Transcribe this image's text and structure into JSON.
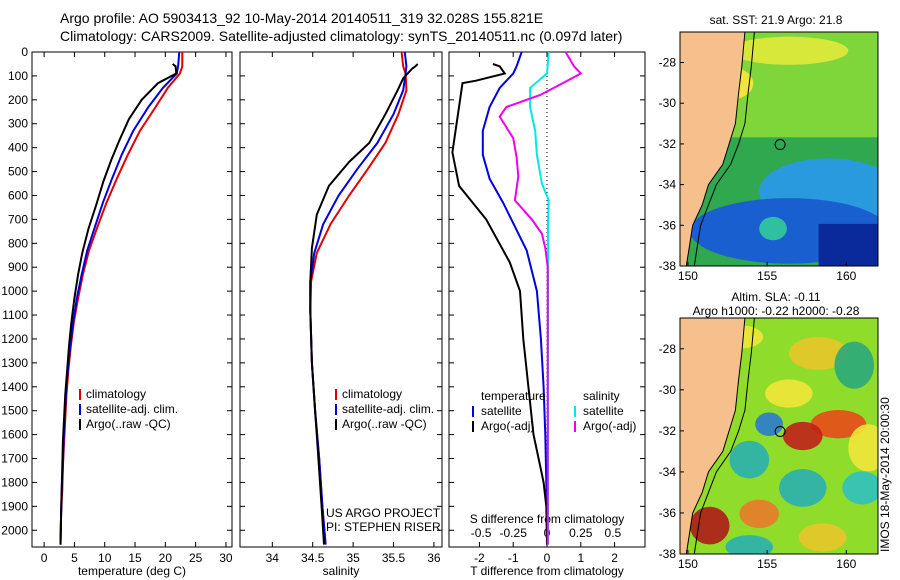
{
  "header": {
    "line1": "Argo profile: AO 5903413_92 10-May-2014 20140511_319 32.028S 155.821E",
    "line2": "Climatology: CARS2009. Satellite-adjusted climatology: synTS_20140511.nc (0.097d later)"
  },
  "colors": {
    "climatology": "#e00000",
    "satellite": "#0000e0",
    "argo": "#000000",
    "sal_satellite": "#00e8e8",
    "sal_argo": "#ee00ee"
  },
  "chart_data": [
    {
      "type": "line",
      "panel": "temperature",
      "xlabel": "temperature (deg C)",
      "xlim": [
        -2,
        31
      ],
      "xticks": [
        0,
        5,
        10,
        15,
        20,
        25,
        30
      ],
      "ylim": [
        0,
        2070
      ],
      "yticks": [
        0,
        100,
        200,
        300,
        400,
        500,
        600,
        700,
        800,
        900,
        1000,
        1100,
        1200,
        1300,
        1400,
        1500,
        1600,
        1700,
        1800,
        1900,
        2000
      ],
      "series": [
        {
          "name": "climatology",
          "color": "#e00000",
          "points": [
            [
              22.8,
              0
            ],
            [
              22.8,
              60
            ],
            [
              22.4,
              90
            ],
            [
              20.4,
              150
            ],
            [
              18.4,
              230
            ],
            [
              15.8,
              330
            ],
            [
              13.8,
              430
            ],
            [
              12.0,
              530
            ],
            [
              10.3,
              630
            ],
            [
              8.8,
              730
            ],
            [
              7.4,
              830
            ],
            [
              6.4,
              930
            ],
            [
              5.6,
              1030
            ],
            [
              4.9,
              1130
            ],
            [
              4.4,
              1230
            ],
            [
              4.0,
              1330
            ],
            [
              3.7,
              1430
            ],
            [
              3.5,
              1530
            ],
            [
              3.3,
              1630
            ],
            [
              3.1,
              1730
            ],
            [
              3.0,
              1830
            ],
            [
              2.8,
              1930
            ],
            [
              2.7,
              2060
            ]
          ]
        },
        {
          "name": "satellite-adj. clim.",
          "color": "#0000e0",
          "points": [
            [
              22.3,
              0
            ],
            [
              22.1,
              60
            ],
            [
              21.9,
              90
            ],
            [
              19.6,
              150
            ],
            [
              17.2,
              230
            ],
            [
              14.7,
              330
            ],
            [
              12.8,
              430
            ],
            [
              11.2,
              530
            ],
            [
              9.7,
              630
            ],
            [
              8.4,
              730
            ],
            [
              7.1,
              830
            ],
            [
              6.2,
              930
            ],
            [
              5.4,
              1030
            ],
            [
              4.8,
              1130
            ],
            [
              4.3,
              1230
            ],
            [
              3.9,
              1330
            ],
            [
              3.6,
              1430
            ],
            [
              3.4,
              1530
            ],
            [
              3.2,
              1630
            ],
            [
              3.1,
              1730
            ],
            [
              2.9,
              1830
            ],
            [
              2.8,
              1930
            ],
            [
              2.7,
              2060
            ]
          ]
        },
        {
          "name": "Argo(..raw -QC)",
          "color": "#000000",
          "points": [
            [
              21.2,
              50
            ],
            [
              21.7,
              60
            ],
            [
              21.8,
              90
            ],
            [
              18.8,
              130
            ],
            [
              16.1,
              200
            ],
            [
              14.0,
              280
            ],
            [
              12.4,
              370
            ],
            [
              11.1,
              450
            ],
            [
              9.8,
              540
            ],
            [
              8.6,
              640
            ],
            [
              7.3,
              740
            ],
            [
              6.3,
              840
            ],
            [
              5.6,
              930
            ],
            [
              5.0,
              1030
            ],
            [
              4.5,
              1130
            ],
            [
              4.1,
              1230
            ],
            [
              3.8,
              1330
            ],
            [
              3.5,
              1430
            ],
            [
              3.3,
              1530
            ],
            [
              3.1,
              1630
            ],
            [
              3.0,
              1730
            ],
            [
              2.9,
              1830
            ],
            [
              2.8,
              1930
            ],
            [
              2.7,
              2060
            ]
          ]
        }
      ]
    },
    {
      "type": "line",
      "panel": "salinity",
      "xlabel": "salinity",
      "xlim": [
        33.6,
        36.1
      ],
      "xticks": [
        34,
        34.5,
        35,
        35.5,
        36
      ],
      "ylim": [
        0,
        2070
      ],
      "series": [
        {
          "name": "climatology",
          "color": "#e00000",
          "points": [
            [
              35.6,
              0
            ],
            [
              35.62,
              60
            ],
            [
              35.65,
              90
            ],
            [
              35.66,
              160
            ],
            [
              35.56,
              260
            ],
            [
              35.4,
              380
            ],
            [
              35.18,
              490
            ],
            [
              34.95,
              600
            ],
            [
              34.72,
              720
            ],
            [
              34.55,
              840
            ],
            [
              34.48,
              960
            ],
            [
              34.47,
              1080
            ],
            [
              34.49,
              1300
            ],
            [
              34.53,
              1500
            ],
            [
              34.58,
              1700
            ],
            [
              34.62,
              1900
            ],
            [
              34.66,
              2060
            ]
          ]
        },
        {
          "name": "satellite-adj. clim.",
          "color": "#0000e0",
          "points": [
            [
              35.64,
              0
            ],
            [
              35.66,
              60
            ],
            [
              35.65,
              90
            ],
            [
              35.62,
              160
            ],
            [
              35.5,
              260
            ],
            [
              35.3,
              380
            ],
            [
              35.05,
              490
            ],
            [
              34.82,
              600
            ],
            [
              34.63,
              720
            ],
            [
              34.52,
              840
            ],
            [
              34.47,
              960
            ],
            [
              34.47,
              1080
            ],
            [
              34.49,
              1300
            ],
            [
              34.53,
              1500
            ],
            [
              34.58,
              1700
            ],
            [
              34.62,
              1900
            ],
            [
              34.66,
              2060
            ]
          ]
        },
        {
          "name": "Argo(..raw -QC)",
          "color": "#000000",
          "points": [
            [
              35.8,
              50
            ],
            [
              35.77,
              60
            ],
            [
              35.73,
              70
            ],
            [
              35.62,
              110
            ],
            [
              35.55,
              160
            ],
            [
              35.4,
              260
            ],
            [
              35.2,
              380
            ],
            [
              34.95,
              460
            ],
            [
              34.7,
              560
            ],
            [
              34.55,
              680
            ],
            [
              34.49,
              820
            ],
            [
              34.47,
              960
            ],
            [
              34.47,
              1080
            ],
            [
              34.49,
              1300
            ],
            [
              34.53,
              1500
            ],
            [
              34.57,
              1700
            ],
            [
              34.61,
              1900
            ],
            [
              34.64,
              2060
            ]
          ]
        }
      ]
    },
    {
      "type": "line",
      "panel": "differences",
      "xlabel": "T difference from climatology",
      "xlim": [
        -2.9,
        2.9
      ],
      "xticks": [
        -2,
        -1,
        0,
        1,
        2
      ],
      "top_xlabel": "S difference from climatology",
      "top_xticks": [
        "-0.5",
        "-0.25",
        "0",
        "0.25",
        "0.5"
      ],
      "ylim": [
        0,
        2070
      ],
      "series": [
        {
          "name": "temperature satellite",
          "color": "#0000e0",
          "points": [
            [
              -0.75,
              0
            ],
            [
              -0.9,
              60
            ],
            [
              -1.0,
              90
            ],
            [
              -1.4,
              150
            ],
            [
              -1.7,
              230
            ],
            [
              -1.9,
              330
            ],
            [
              -1.9,
              430
            ],
            [
              -1.7,
              530
            ],
            [
              -1.3,
              630
            ],
            [
              -0.95,
              730
            ],
            [
              -0.6,
              830
            ],
            [
              -0.3,
              1000
            ],
            [
              -0.18,
              1200
            ],
            [
              -0.1,
              1400
            ],
            [
              -0.05,
              1600
            ],
            [
              -0.02,
              1800
            ],
            [
              0,
              2000
            ],
            [
              0,
              2060
            ]
          ]
        },
        {
          "name": "temperature Argo(-adj)",
          "color": "#000000",
          "points": [
            [
              -1.6,
              50
            ],
            [
              -1.4,
              60
            ],
            [
              -1.25,
              90
            ],
            [
              -2.1,
              120
            ],
            [
              -2.5,
              130
            ],
            [
              -2.8,
              420
            ],
            [
              -2.6,
              560
            ],
            [
              -1.8,
              700
            ],
            [
              -1.1,
              880
            ],
            [
              -0.8,
              1000
            ],
            [
              -0.7,
              1200
            ],
            [
              -0.55,
              1400
            ],
            [
              -0.4,
              1600
            ],
            [
              -0.25,
              1700
            ],
            [
              -0.1,
              1800
            ],
            [
              -0.02,
              1900
            ],
            [
              0,
              2060
            ]
          ]
        },
        {
          "name": "salinity satellite",
          "color": "#00e8e8",
          "points": [
            [
              0.05,
              0
            ],
            [
              0.0,
              90
            ],
            [
              -0.5,
              150
            ],
            [
              -0.5,
              230
            ],
            [
              -0.35,
              330
            ],
            [
              -0.3,
              430
            ],
            [
              -0.15,
              550
            ],
            [
              0.05,
              620
            ],
            [
              0.03,
              720
            ],
            [
              0.03,
              1000
            ],
            [
              0.03,
              1400
            ],
            [
              0.03,
              1800
            ],
            [
              0.03,
              2060
            ]
          ]
        },
        {
          "name": "salinity Argo(-adj)",
          "color": "#ee00ee",
          "points": [
            [
              0.55,
              0
            ],
            [
              0.8,
              60
            ],
            [
              1.0,
              90
            ],
            [
              0.6,
              120
            ],
            [
              -0.2,
              180
            ],
            [
              -1.2,
              230
            ],
            [
              -1.4,
              270
            ],
            [
              -1.0,
              360
            ],
            [
              -0.9,
              440
            ],
            [
              -0.85,
              520
            ],
            [
              -0.95,
              620
            ],
            [
              -0.45,
              700
            ],
            [
              -0.15,
              760
            ],
            [
              -0.05,
              820
            ],
            [
              0.02,
              900
            ],
            [
              0.02,
              1200
            ],
            [
              0.02,
              1600
            ],
            [
              0.02,
              2060
            ]
          ]
        }
      ]
    },
    {
      "type": "heatmap",
      "panel": "sst_map",
      "title": "sat. SST: 21.9 Argo: 21.8",
      "xticks": [
        "150",
        "155",
        "160"
      ],
      "yticks": [
        "-28",
        "-30",
        "-32",
        "-34",
        "-36",
        "-38"
      ],
      "xlim": [
        149.5,
        162
      ],
      "ylim": [
        -38,
        -26.5
      ],
      "marker": [
        155.82,
        -32.03
      ]
    },
    {
      "type": "heatmap",
      "panel": "sla_map",
      "title": "Altim. SLA: -0.11",
      "subtitle": "Argo h1000: -0.22 h2000: -0.28",
      "xticks": [
        "150",
        "155",
        "160"
      ],
      "yticks": [
        "-28",
        "-30",
        "-32",
        "-34",
        "-36",
        "-38"
      ],
      "xlim": [
        149.5,
        162
      ],
      "ylim": [
        -38,
        -26.5
      ],
      "marker": [
        155.82,
        -32.03
      ]
    }
  ],
  "legends": {
    "temp": [
      "climatology",
      "satellite-adj. clim.",
      "Argo(..raw -QC)"
    ],
    "sal": [
      "climatology",
      "satellite-adj. clim.",
      "Argo(..raw -QC)"
    ],
    "diff_headers": [
      "temperature",
      "salinity"
    ],
    "diff_temp": [
      "satellite",
      "Argo(-adj)"
    ],
    "diff_sal": [
      "satellite",
      "Argo(-adj)"
    ]
  },
  "credits": {
    "project": "US ARGO PROJECT",
    "pi": "PI: STEPHEN RISER"
  },
  "side_label": "IMOS 18-May-2014 20:00:30"
}
